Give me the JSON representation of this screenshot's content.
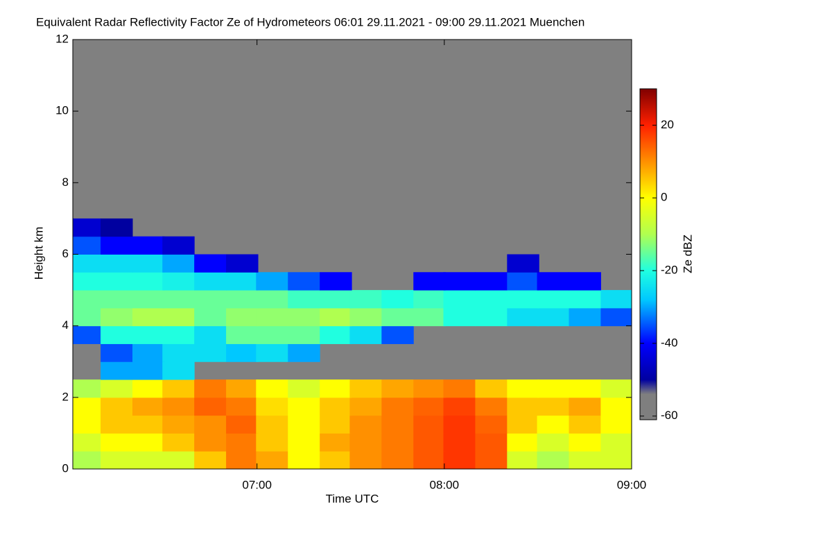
{
  "chart_data": {
    "type": "heatmap",
    "title": "Equivalent Radar Reflectivity Factor Ze of Hydrometeors   06:01 29.11.2021 - 09:00 29.11.2021 Muenchen",
    "xlabel": "Time UTC",
    "ylabel": "Height km",
    "clabel": "Ze dBZ",
    "background": "#808080",
    "xlim": [
      6.0167,
      9.0
    ],
    "xticks": [
      {
        "value": 7,
        "label": "07:00"
      },
      {
        "value": 8,
        "label": "08:00"
      },
      {
        "value": 9,
        "label": "09:00"
      }
    ],
    "ylim": [
      0,
      12
    ],
    "yticks": [
      0,
      2,
      4,
      6,
      8,
      10,
      12
    ],
    "clim": [
      -61,
      30
    ],
    "cticks": [
      -60,
      -40,
      -20,
      0,
      20
    ],
    "colormap": [
      {
        "value": -61,
        "color": "#7f7f7f"
      },
      {
        "value": -54,
        "color": "#7f7f7f"
      },
      {
        "value": -50,
        "color": "#0000a0"
      },
      {
        "value": -40,
        "color": "#0000ff"
      },
      {
        "value": -28,
        "color": "#00c8ff"
      },
      {
        "value": -20,
        "color": "#20ffe0"
      },
      {
        "value": -10,
        "color": "#b0ff50"
      },
      {
        "value": 0,
        "color": "#ffff00"
      },
      {
        "value": 10,
        "color": "#ff9000"
      },
      {
        "value": 20,
        "color": "#ff2000"
      },
      {
        "value": 30,
        "color": "#800000"
      }
    ],
    "x": [
      6.08,
      6.25,
      6.42,
      6.58,
      6.75,
      6.92,
      7.08,
      7.25,
      7.42,
      7.58,
      7.75,
      7.92,
      8.08,
      8.25,
      8.42,
      8.58,
      8.75,
      8.92
    ],
    "y": [
      0.25,
      0.75,
      1.25,
      1.75,
      2.25,
      2.75,
      3.25,
      3.75,
      4.25,
      4.75,
      5.25,
      5.75,
      6.25,
      6.75
    ],
    "z": [
      [
        -10,
        -5,
        -5,
        -5,
        5,
        12,
        8,
        0,
        5,
        10,
        12,
        15,
        18,
        15,
        -5,
        -10,
        -5,
        -5
      ],
      [
        -5,
        0,
        0,
        5,
        10,
        12,
        5,
        0,
        8,
        10,
        12,
        15,
        18,
        15,
        0,
        -5,
        0,
        -5
      ],
      [
        0,
        5,
        5,
        8,
        10,
        14,
        5,
        0,
        5,
        10,
        12,
        15,
        18,
        14,
        5,
        0,
        5,
        0
      ],
      [
        0,
        5,
        8,
        10,
        14,
        12,
        3,
        0,
        5,
        8,
        12,
        14,
        17,
        12,
        5,
        5,
        8,
        0
      ],
      [
        -10,
        -5,
        0,
        5,
        12,
        8,
        0,
        -5,
        0,
        5,
        8,
        10,
        12,
        5,
        0,
        0,
        0,
        -5
      ],
      [
        null,
        -30,
        -30,
        -25,
        null,
        null,
        null,
        null,
        null,
        null,
        null,
        null,
        null,
        null,
        null,
        null,
        null,
        null
      ],
      [
        null,
        -35,
        -30,
        -25,
        -25,
        -28,
        -25,
        -30,
        null,
        null,
        null,
        null,
        null,
        null,
        null,
        null,
        null,
        null
      ],
      [
        -35,
        -20,
        -20,
        -20,
        -25,
        -15,
        -15,
        -15,
        -20,
        -25,
        -35,
        null,
        null,
        null,
        null,
        null,
        null,
        null
      ],
      [
        -15,
        -12,
        -10,
        -10,
        -15,
        -12,
        -12,
        -12,
        -10,
        -12,
        -15,
        -15,
        -20,
        -20,
        -25,
        -25,
        -30,
        -35
      ],
      [
        -15,
        -15,
        -15,
        -15,
        -15,
        -15,
        -15,
        -18,
        -18,
        -18,
        -20,
        -18,
        -20,
        -20,
        -20,
        -20,
        -20,
        -25
      ],
      [
        -20,
        -20,
        -20,
        -22,
        -25,
        -25,
        -30,
        -35,
        -40,
        null,
        null,
        -40,
        -40,
        -40,
        -35,
        -40,
        -40,
        null
      ],
      [
        -25,
        -25,
        -25,
        -30,
        -40,
        -45,
        null,
        null,
        null,
        null,
        null,
        null,
        null,
        null,
        -45,
        null,
        null,
        null
      ],
      [
        -35,
        -40,
        -40,
        -45,
        null,
        null,
        null,
        null,
        null,
        null,
        null,
        null,
        null,
        null,
        null,
        null,
        null,
        null
      ],
      [
        -45,
        -50,
        null,
        null,
        null,
        null,
        null,
        null,
        null,
        null,
        null,
        null,
        null,
        null,
        null,
        null,
        null,
        null
      ]
    ]
  }
}
